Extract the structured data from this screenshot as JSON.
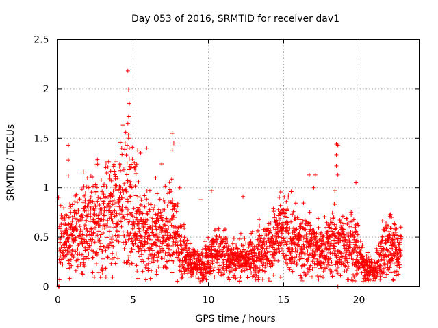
{
  "chart_data": {
    "type": "scatter",
    "title": "Day 053 of 2016, SRMTID for receiver dav1",
    "xlabel": "GPS time / hours",
    "ylabel": "SRMTID / TECUs",
    "xlim": [
      0,
      24
    ],
    "ylim": [
      0,
      2.5
    ],
    "xticks": [
      0,
      5,
      10,
      15,
      20
    ],
    "xtick_labels": [
      "0",
      "5",
      "10",
      "15",
      "20"
    ],
    "yticks": [
      0,
      0.5,
      1,
      1.5,
      2,
      2.5
    ],
    "ytick_labels": [
      "0",
      "0.5",
      "1",
      "1.5",
      "2",
      "2.5"
    ],
    "grid": true,
    "marker": "+",
    "color": "#ff0000",
    "series": [
      {
        "name": "SRMTID",
        "trend": [
          {
            "x": 0.1,
            "y": 0.45
          },
          {
            "x": 0.5,
            "y": 0.48
          },
          {
            "x": 1.0,
            "y": 0.52
          },
          {
            "x": 1.5,
            "y": 0.56
          },
          {
            "x": 2.0,
            "y": 0.62
          },
          {
            "x": 2.5,
            "y": 0.64
          },
          {
            "x": 3.0,
            "y": 0.66
          },
          {
            "x": 3.5,
            "y": 0.7
          },
          {
            "x": 4.0,
            "y": 0.78
          },
          {
            "x": 4.5,
            "y": 0.85
          },
          {
            "x": 5.0,
            "y": 0.78
          },
          {
            "x": 5.5,
            "y": 0.55
          },
          {
            "x": 6.0,
            "y": 0.5
          },
          {
            "x": 6.5,
            "y": 0.52
          },
          {
            "x": 7.0,
            "y": 0.55
          },
          {
            "x": 7.5,
            "y": 0.62
          },
          {
            "x": 8.0,
            "y": 0.45
          },
          {
            "x": 8.5,
            "y": 0.3
          },
          {
            "x": 9.0,
            "y": 0.25
          },
          {
            "x": 9.5,
            "y": 0.22
          },
          {
            "x": 10.0,
            "y": 0.3
          },
          {
            "x": 10.5,
            "y": 0.35
          },
          {
            "x": 11.0,
            "y": 0.32
          },
          {
            "x": 11.5,
            "y": 0.28
          },
          {
            "x": 12.0,
            "y": 0.3
          },
          {
            "x": 12.5,
            "y": 0.27
          },
          {
            "x": 13.0,
            "y": 0.3
          },
          {
            "x": 13.5,
            "y": 0.35
          },
          {
            "x": 14.0,
            "y": 0.4
          },
          {
            "x": 14.5,
            "y": 0.48
          },
          {
            "x": 15.0,
            "y": 0.52
          },
          {
            "x": 15.5,
            "y": 0.5
          },
          {
            "x": 16.0,
            "y": 0.42
          },
          {
            "x": 16.5,
            "y": 0.45
          },
          {
            "x": 17.0,
            "y": 0.38
          },
          {
            "x": 17.5,
            "y": 0.35
          },
          {
            "x": 18.0,
            "y": 0.42
          },
          {
            "x": 18.5,
            "y": 0.45
          },
          {
            "x": 19.0,
            "y": 0.4
          },
          {
            "x": 19.5,
            "y": 0.48
          },
          {
            "x": 20.0,
            "y": 0.3
          },
          {
            "x": 20.5,
            "y": 0.2
          },
          {
            "x": 21.0,
            "y": 0.15
          },
          {
            "x": 21.5,
            "y": 0.35
          },
          {
            "x": 22.0,
            "y": 0.45
          },
          {
            "x": 22.5,
            "y": 0.35
          },
          {
            "x": 22.8,
            "y": 0.33
          }
        ],
        "notable_points": [
          {
            "x": 0.05,
            "y": 0.9
          },
          {
            "x": 0.05,
            "y": 0.0
          },
          {
            "x": 0.1,
            "y": 0.0
          },
          {
            "x": 0.7,
            "y": 1.43
          },
          {
            "x": 0.7,
            "y": 1.28
          },
          {
            "x": 0.7,
            "y": 1.12
          },
          {
            "x": 1.7,
            "y": 1.16
          },
          {
            "x": 2.2,
            "y": 1.12
          },
          {
            "x": 3.2,
            "y": 1.25
          },
          {
            "x": 4.65,
            "y": 2.18
          },
          {
            "x": 4.7,
            "y": 1.99
          },
          {
            "x": 4.75,
            "y": 1.85
          },
          {
            "x": 4.7,
            "y": 1.72
          },
          {
            "x": 4.65,
            "y": 1.65
          },
          {
            "x": 4.7,
            "y": 1.5
          },
          {
            "x": 4.75,
            "y": 1.4
          },
          {
            "x": 4.6,
            "y": 1.25
          },
          {
            "x": 5.3,
            "y": 1.38
          },
          {
            "x": 5.5,
            "y": 1.35
          },
          {
            "x": 5.9,
            "y": 1.4
          },
          {
            "x": 6.5,
            "y": 1.1
          },
          {
            "x": 6.9,
            "y": 1.24
          },
          {
            "x": 7.6,
            "y": 1.55
          },
          {
            "x": 7.7,
            "y": 1.45
          },
          {
            "x": 7.6,
            "y": 1.38
          },
          {
            "x": 8.1,
            "y": 1.0
          },
          {
            "x": 9.5,
            "y": 0.88
          },
          {
            "x": 9.6,
            "y": 0.08
          },
          {
            "x": 10.2,
            "y": 0.97
          },
          {
            "x": 12.3,
            "y": 0.91
          },
          {
            "x": 15.5,
            "y": 0.96
          },
          {
            "x": 16.7,
            "y": 1.13
          },
          {
            "x": 17.1,
            "y": 1.13
          },
          {
            "x": 17.0,
            "y": 1.0
          },
          {
            "x": 18.5,
            "y": 1.44
          },
          {
            "x": 18.6,
            "y": 1.43
          },
          {
            "x": 18.5,
            "y": 1.33
          },
          {
            "x": 18.5,
            "y": 1.22
          },
          {
            "x": 18.6,
            "y": 1.13
          },
          {
            "x": 18.4,
            "y": 0.97
          },
          {
            "x": 18.6,
            "y": 0.0
          },
          {
            "x": 19.8,
            "y": 1.05
          },
          {
            "x": 21.0,
            "y": 0.06
          },
          {
            "x": 22.7,
            "y": 0.45
          }
        ]
      }
    ]
  }
}
